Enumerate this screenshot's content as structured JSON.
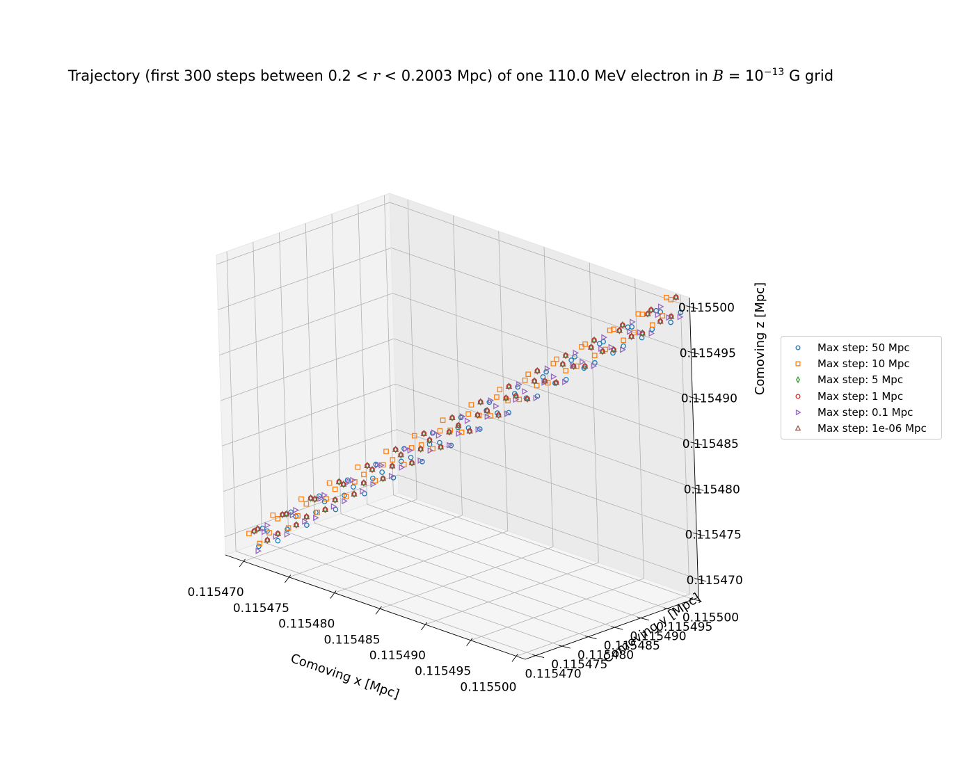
{
  "chart_data": {
    "type": "scatter",
    "projection": "3d",
    "title_parts": {
      "prefix": "Trajectory (first 300 steps between 0.2 < ",
      "var": "r",
      "middle": " < 0.2003 Mpc) of one 110.0 MeV electron in ",
      "field_symbol": "B",
      "equals": " = 10",
      "exponent": "−13",
      "suffix": " G grid"
    },
    "xlabel": "Comoving x [Mpc]",
    "ylabel": "Comoving y [Mpc]",
    "zlabel": "Comoving z [Mpc]",
    "xlim": [
      0.115468,
      0.115501
    ],
    "ylim": [
      0.115468,
      0.115501
    ],
    "zlim": [
      0.115468,
      0.115501
    ],
    "xticks": [
      "0.115470",
      "0.115475",
      "0.115480",
      "0.115485",
      "0.115490",
      "0.115495",
      "0.115500"
    ],
    "yticks": [
      "0.115470",
      "0.115475",
      "0.115480",
      "0.115485",
      "0.115490",
      "0.115495",
      "0.115500"
    ],
    "zticks": [
      "0.115470",
      "0.115475",
      "0.115480",
      "0.115485",
      "0.115490",
      "0.115495",
      "0.115500"
    ],
    "grid": true,
    "trajectory": {
      "start": [
        0.11547,
        0.11547,
        0.11547
      ],
      "end": [
        0.1155,
        0.1155,
        0.1155
      ],
      "points_per_series": 60,
      "gyration_amplitude": 1.1e-06,
      "gyration_turns": 15
    },
    "series": [
      {
        "name": "Max step: 50 Mpc",
        "marker": "circle",
        "color": "#1f77b4",
        "phase": 0.0,
        "perp_offset": 6e-07
      },
      {
        "name": "Max step: 10 Mpc",
        "marker": "square",
        "color": "#ff7f0e",
        "phase": 0.5,
        "perp_offset": -4e-07
      },
      {
        "name": "Max step: 5 Mpc",
        "marker": "diamond",
        "color": "#2ca02c",
        "phase": 0.2,
        "perp_offset": 0.0
      },
      {
        "name": "Max step: 1 Mpc",
        "marker": "circle",
        "color": "#d62728",
        "phase": 0.2,
        "perp_offset": 0.0
      },
      {
        "name": "Max step: 0.1 Mpc",
        "marker": "triangle-right",
        "color": "#9467bd",
        "phase": 0.9,
        "perp_offset": 5e-07
      },
      {
        "name": "Max step: 1e-06 Mpc",
        "marker": "triangle-up",
        "color": "#8c564b",
        "phase": 0.2,
        "perp_offset": 0.0
      }
    ],
    "legend_position": "right"
  }
}
